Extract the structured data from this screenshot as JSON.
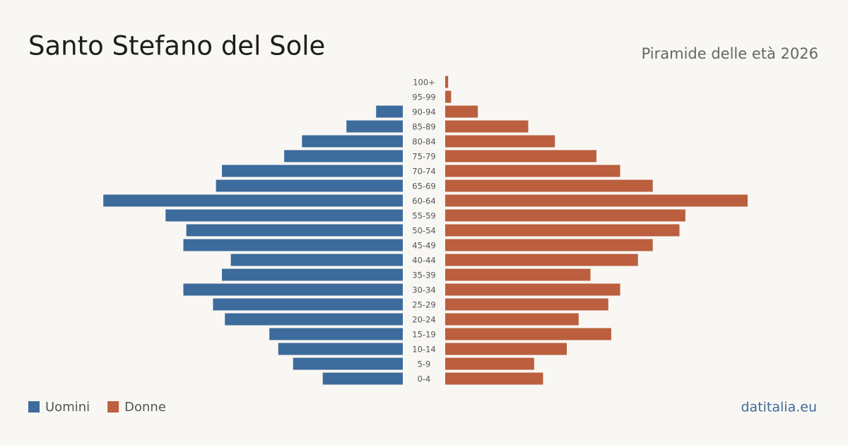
{
  "chart_data": {
    "type": "pyramid",
    "title": "Santo Stefano del Sole",
    "subtitle": "Piramide delle età 2026",
    "source": "datitalia.eu",
    "categories": [
      "100+",
      "95-99",
      "90-94",
      "85-89",
      "80-84",
      "75-79",
      "70-74",
      "65-69",
      "60-64",
      "55-59",
      "50-54",
      "45-49",
      "40-44",
      "35-39",
      "30-34",
      "25-29",
      "20-24",
      "15-19",
      "10-14",
      "5-9",
      "0-4"
    ],
    "series": [
      {
        "name": "Uomini",
        "color": "#3d6b9c",
        "values": [
          0,
          0,
          9,
          19,
          34,
          40,
          61,
          63,
          101,
          80,
          73,
          74,
          58,
          61,
          74,
          64,
          60,
          45,
          42,
          37,
          27
        ]
      },
      {
        "name": "Donne",
        "color": "#bb5f3e",
        "values": [
          1,
          2,
          11,
          28,
          37,
          51,
          59,
          70,
          102,
          81,
          79,
          70,
          65,
          49,
          59,
          55,
          45,
          56,
          41,
          30,
          33
        ]
      }
    ],
    "xlim": [
      0,
      102
    ]
  }
}
